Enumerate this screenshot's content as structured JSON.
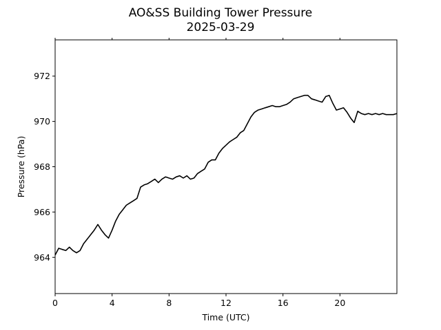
{
  "chart_data": {
    "type": "line",
    "title": "AO&SS Building Tower Pressure",
    "subtitle": "2025-03-29",
    "xlabel": "Time (UTC)",
    "ylabel": "Pressure (hPa)",
    "xlim": [
      0,
      24
    ],
    "ylim": [
      962.4,
      973.6
    ],
    "xticks": [
      0,
      4,
      8,
      12,
      16,
      20
    ],
    "yticks": [
      964,
      966,
      968,
      970,
      972
    ],
    "grid": false,
    "line_color": "#000000",
    "series": [
      {
        "x": [
          0.0,
          0.25,
          0.5,
          0.75,
          1.0,
          1.25,
          1.5,
          1.75,
          2.0,
          2.25,
          2.5,
          2.75,
          3.0,
          3.25,
          3.5,
          3.75,
          4.0,
          4.25,
          4.5,
          4.75,
          5.0,
          5.25,
          5.5,
          5.75,
          6.0,
          6.25,
          6.5,
          6.75,
          7.0,
          7.25,
          7.5,
          7.75,
          8.0,
          8.25,
          8.5,
          8.75,
          9.0,
          9.25,
          9.5,
          9.75,
          10.0,
          10.25,
          10.5,
          10.75,
          11.0,
          11.25,
          11.5,
          11.75,
          12.0,
          12.25,
          12.5,
          12.75,
          13.0,
          13.25,
          13.5,
          13.75,
          14.0,
          14.25,
          14.5,
          14.75,
          15.0,
          15.25,
          15.5,
          15.75,
          16.0,
          16.25,
          16.5,
          16.75,
          17.0,
          17.25,
          17.5,
          17.75,
          18.0,
          18.25,
          18.5,
          18.75,
          19.0,
          19.25,
          19.5,
          19.75,
          20.0,
          20.25,
          20.5,
          20.75,
          21.0,
          21.25,
          21.5,
          21.75,
          22.0,
          22.25,
          22.5,
          22.75,
          23.0,
          23.25,
          23.5,
          23.75,
          24.0
        ],
        "y": [
          964.1,
          964.4,
          964.35,
          964.3,
          964.45,
          964.3,
          964.2,
          964.3,
          964.6,
          964.8,
          965.0,
          965.2,
          965.45,
          965.2,
          965.0,
          964.85,
          965.2,
          965.6,
          965.9,
          966.1,
          966.3,
          966.4,
          966.5,
          966.6,
          967.1,
          967.2,
          967.25,
          967.35,
          967.45,
          967.3,
          967.45,
          967.55,
          967.5,
          967.45,
          967.55,
          967.6,
          967.5,
          967.6,
          967.45,
          967.5,
          967.7,
          967.8,
          967.9,
          968.2,
          968.3,
          968.3,
          968.6,
          968.8,
          968.95,
          969.1,
          969.2,
          969.3,
          969.5,
          969.6,
          969.9,
          970.2,
          970.4,
          970.5,
          970.55,
          970.6,
          970.65,
          970.7,
          970.65,
          970.65,
          970.7,
          970.75,
          970.85,
          971.0,
          971.05,
          971.1,
          971.15,
          971.15,
          971.0,
          970.95,
          970.9,
          970.85,
          971.1,
          971.15,
          970.8,
          970.5,
          970.55,
          970.6,
          970.4,
          970.15,
          969.95,
          970.45,
          970.35,
          970.3,
          970.35,
          970.3,
          970.35,
          970.3,
          970.35,
          970.3,
          970.3,
          970.3,
          970.35
        ]
      }
    ]
  }
}
